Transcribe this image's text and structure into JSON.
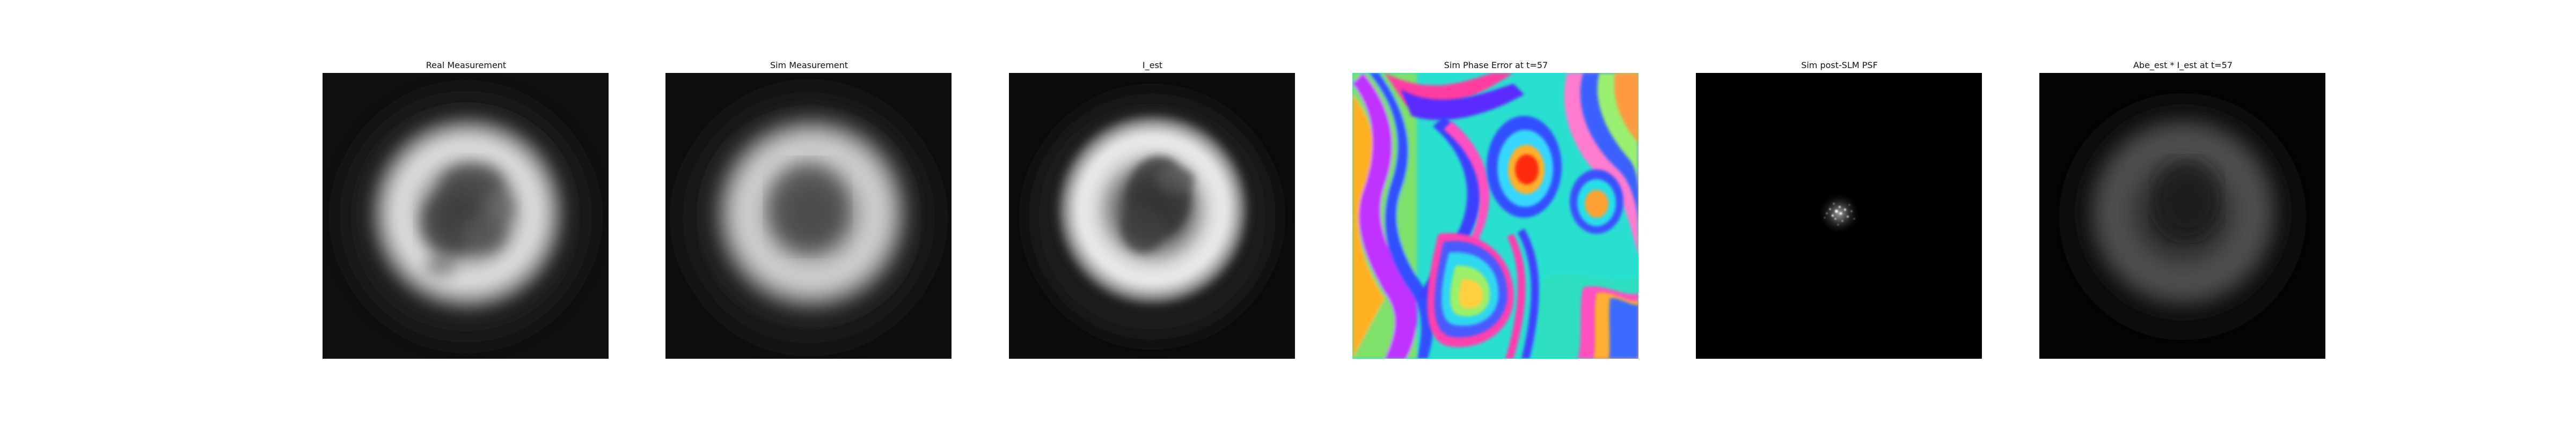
{
  "figure": {
    "panels": [
      {
        "id": "real",
        "title": "Real Measurement",
        "colormap": "gray"
      },
      {
        "id": "sim",
        "title": "Sim Measurement",
        "colormap": "gray"
      },
      {
        "id": "iest",
        "title": "I_est",
        "colormap": "gray"
      },
      {
        "id": "phase",
        "title": "Sim Phase Error at t=57",
        "colormap": "hsv"
      },
      {
        "id": "psf",
        "title": "Sim post-SLM PSF",
        "colormap": "gray"
      },
      {
        "id": "abe",
        "title": "Abe_est * I_est at t=57",
        "colormap": "gray"
      }
    ]
  }
}
